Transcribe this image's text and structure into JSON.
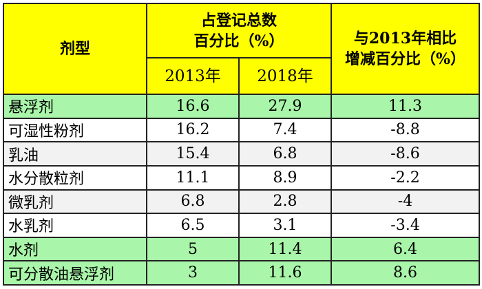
{
  "chart_data": {
    "type": "table",
    "headers": {
      "formulation": "剂型",
      "share_line1": "占登记总数",
      "share_line2": "百分比（%）",
      "year_a": "2013年",
      "year_b": "2018年",
      "change_line1": "与2013年相比",
      "change_line2": "增减百分比（%）"
    },
    "rows": [
      {
        "name": "悬浮剂",
        "v2013": "16.6",
        "v2018": "27.9",
        "change": "11.3",
        "highlight": true
      },
      {
        "name": "可湿性粉剂",
        "v2013": "16.2",
        "v2018": "7.4",
        "change": "-8.8",
        "highlight": false
      },
      {
        "name": "乳油",
        "v2013": "15.4",
        "v2018": "6.8",
        "change": "-8.6",
        "highlight": false
      },
      {
        "name": "水分散粒剂",
        "v2013": "11.1",
        "v2018": "8.9",
        "change": "-2.2",
        "highlight": false
      },
      {
        "name": "微乳剂",
        "v2013": "6.8",
        "v2018": "2.8",
        "change": "-4",
        "highlight": false
      },
      {
        "name": "水乳剂",
        "v2013": "6.5",
        "v2018": "3.1",
        "change": "-3.4",
        "highlight": false
      },
      {
        "name": "水剂",
        "v2013": "5",
        "v2018": "11.4",
        "change": "6.4",
        "highlight": true
      },
      {
        "name": "可分散油悬浮剂",
        "v2013": "3",
        "v2018": "11.6",
        "change": "8.6",
        "highlight": true
      }
    ],
    "colors": {
      "header": "#ffff00",
      "highlight": "#a9f5a9",
      "stripe": "#f2f2f2",
      "plain": "#ffffff"
    }
  }
}
